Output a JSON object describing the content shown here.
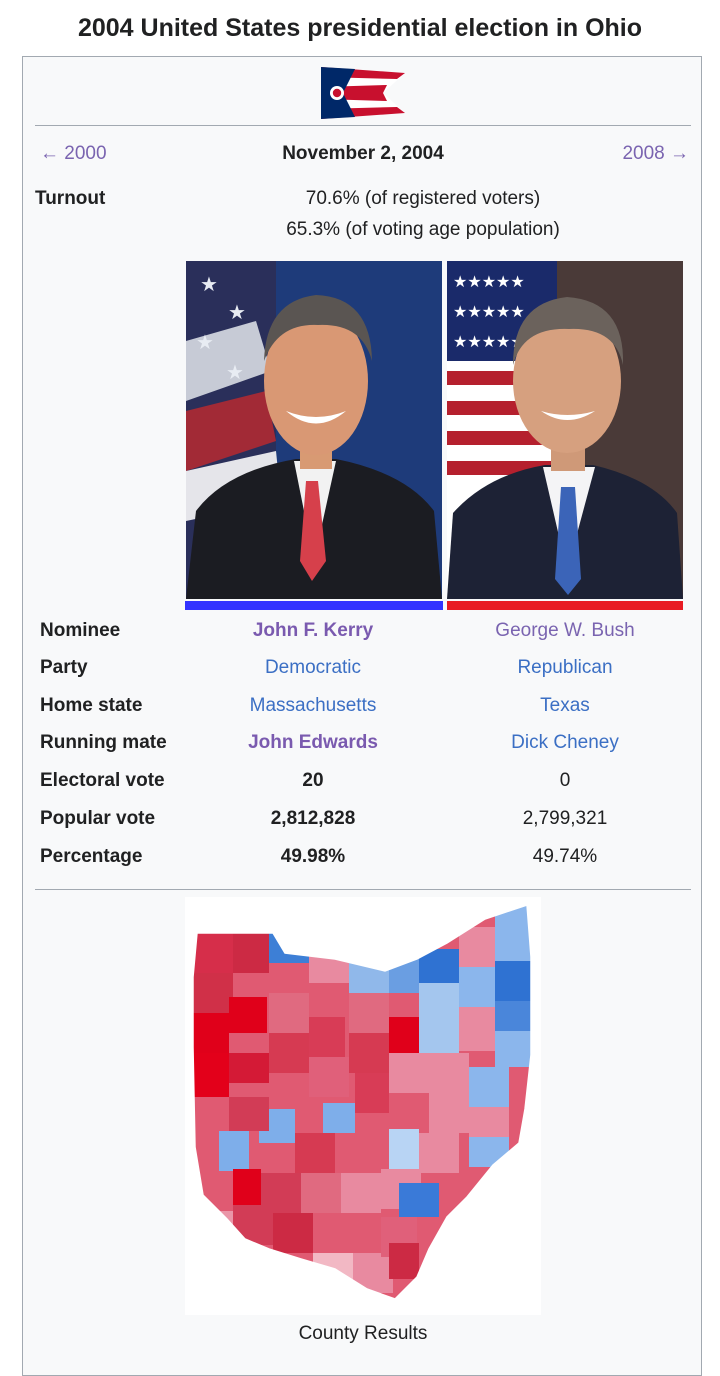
{
  "page": {
    "title": "2004 United States presidential election in Ohio"
  },
  "infobox": {
    "flag_icon": "ohio-flag-icon",
    "nav": {
      "prev_label": "← 2000",
      "date": "November 2, 2004",
      "next_label": "2008 →"
    },
    "turnout": {
      "label": "Turnout",
      "registered": "70.6% (of registered voters)",
      "voting_age": "65.3% (of voting age population)"
    },
    "candidates": [
      {
        "name": "John F. Kerry",
        "party": "Democratic",
        "home_state": "Massachusetts",
        "running_mate": "John Edwards",
        "electoral_vote": "20",
        "popular_vote": "2,812,828",
        "percentage": "49.98%",
        "bar_color": "#3333ff"
      },
      {
        "name": "George W. Bush",
        "party": "Republican",
        "home_state": "Texas",
        "running_mate": "Dick Cheney",
        "electoral_vote": "0",
        "popular_vote": "2,799,321",
        "percentage": "49.74%",
        "bar_color": "#e81b23"
      }
    ],
    "row_labels": {
      "nominee": "Nominee",
      "party": "Party",
      "home_state": "Home state",
      "running_mate": "Running mate",
      "electoral_vote": "Electoral vote",
      "popular_vote": "Popular vote",
      "percentage": "Percentage"
    },
    "map_caption": "County Results"
  },
  "colors": {
    "link_purple": "#7a5aaf",
    "link_blue": "#3b6fc4",
    "border": "#a2a9b1",
    "background": "#f8f9fa"
  }
}
